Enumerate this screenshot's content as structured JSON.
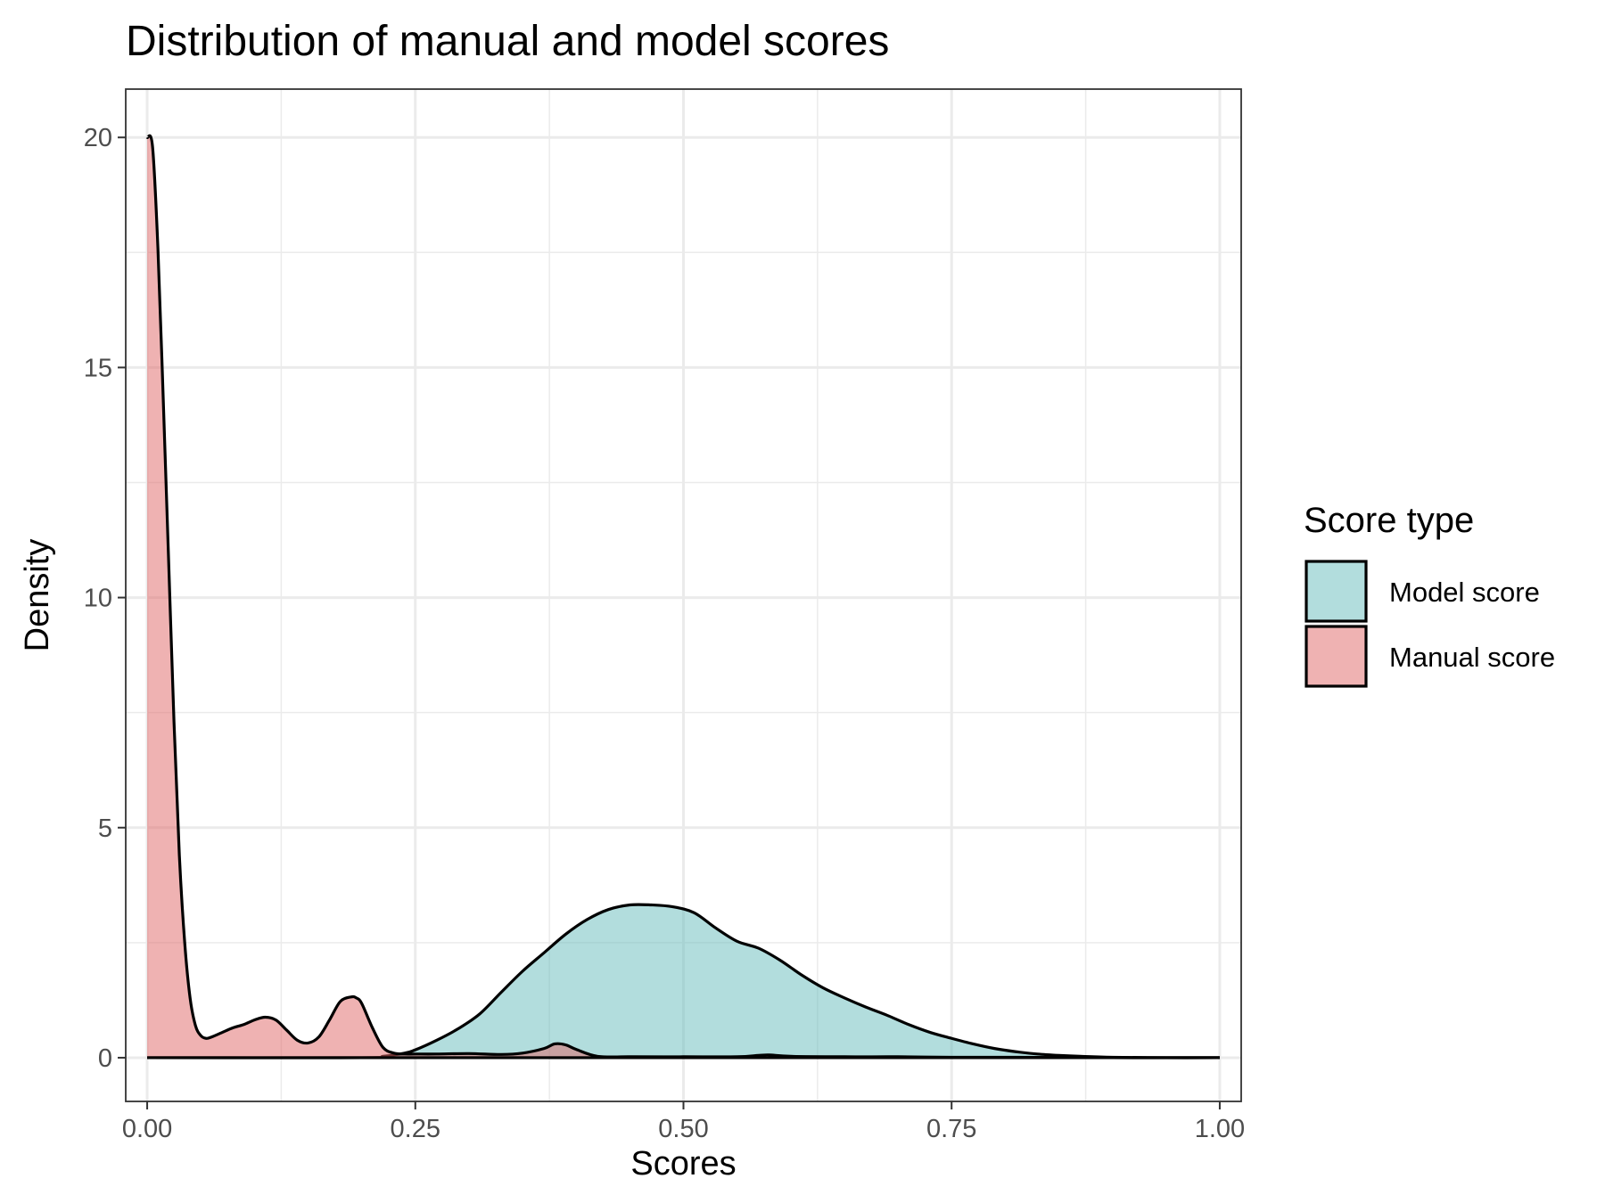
{
  "chart_data": {
    "type": "area",
    "title": "Distribution of manual and model scores",
    "xlabel": "Scores",
    "ylabel": "Density",
    "xlim": [
      -0.02,
      1.02
    ],
    "ylim": [
      -0.95,
      21.05
    ],
    "x_ticks": [
      0,
      0.25,
      0.5,
      0.75,
      1.0
    ],
    "x_tick_labels": [
      "0.00",
      "0.25",
      "0.50",
      "0.75",
      "1.00"
    ],
    "y_ticks": [
      0,
      5,
      10,
      15,
      20
    ],
    "y_tick_labels": [
      "0",
      "5",
      "10",
      "15",
      "20"
    ],
    "grid": true,
    "legend": {
      "title": "Score type",
      "position": "right",
      "entries": [
        {
          "label": "Model score",
          "color": "#66bbbb"
        },
        {
          "label": "Manual score",
          "color": "#e06666"
        }
      ]
    },
    "series": [
      {
        "name": "Model score",
        "color": "#66bbbb",
        "x": [
          0.0,
          0.2,
          0.22,
          0.24,
          0.25,
          0.27,
          0.29,
          0.31,
          0.33,
          0.35,
          0.37,
          0.39,
          0.41,
          0.43,
          0.45,
          0.47,
          0.49,
          0.51,
          0.53,
          0.55,
          0.57,
          0.59,
          0.61,
          0.63,
          0.65,
          0.67,
          0.69,
          0.71,
          0.73,
          0.75,
          0.77,
          0.79,
          0.81,
          0.83,
          0.85,
          0.87,
          0.9,
          0.95,
          1.0
        ],
        "y": [
          0.0,
          0.0,
          0.03,
          0.1,
          0.17,
          0.38,
          0.63,
          0.95,
          1.42,
          1.88,
          2.28,
          2.68,
          3.0,
          3.22,
          3.32,
          3.32,
          3.28,
          3.15,
          2.82,
          2.53,
          2.38,
          2.12,
          1.8,
          1.52,
          1.3,
          1.1,
          0.92,
          0.72,
          0.55,
          0.42,
          0.3,
          0.2,
          0.13,
          0.08,
          0.05,
          0.03,
          0.01,
          0.0,
          0.0
        ]
      },
      {
        "name": "Manual score",
        "color": "#e06666",
        "x": [
          0.0,
          0.005,
          0.01,
          0.015,
          0.02,
          0.025,
          0.03,
          0.035,
          0.04,
          0.045,
          0.05,
          0.055,
          0.06,
          0.07,
          0.08,
          0.09,
          0.1,
          0.11,
          0.12,
          0.13,
          0.14,
          0.15,
          0.16,
          0.17,
          0.18,
          0.19,
          0.195,
          0.2,
          0.21,
          0.22,
          0.23,
          0.24,
          0.25,
          0.27,
          0.3,
          0.33,
          0.35,
          0.37,
          0.38,
          0.39,
          0.4,
          0.42,
          0.45,
          0.5,
          0.55,
          0.57,
          0.58,
          0.6,
          0.65,
          0.7,
          0.75,
          0.8,
          0.9,
          1.0
        ],
        "y": [
          20.0,
          19.8,
          17.6,
          14.3,
          10.8,
          7.3,
          4.4,
          2.5,
          1.3,
          0.7,
          0.48,
          0.42,
          0.45,
          0.55,
          0.65,
          0.72,
          0.82,
          0.88,
          0.82,
          0.6,
          0.38,
          0.32,
          0.45,
          0.82,
          1.22,
          1.32,
          1.3,
          1.18,
          0.65,
          0.22,
          0.1,
          0.08,
          0.08,
          0.08,
          0.09,
          0.07,
          0.1,
          0.2,
          0.3,
          0.28,
          0.18,
          0.03,
          0.02,
          0.02,
          0.02,
          0.05,
          0.06,
          0.03,
          0.02,
          0.02,
          0.01,
          0.01,
          0.0,
          0.0
        ]
      }
    ]
  }
}
